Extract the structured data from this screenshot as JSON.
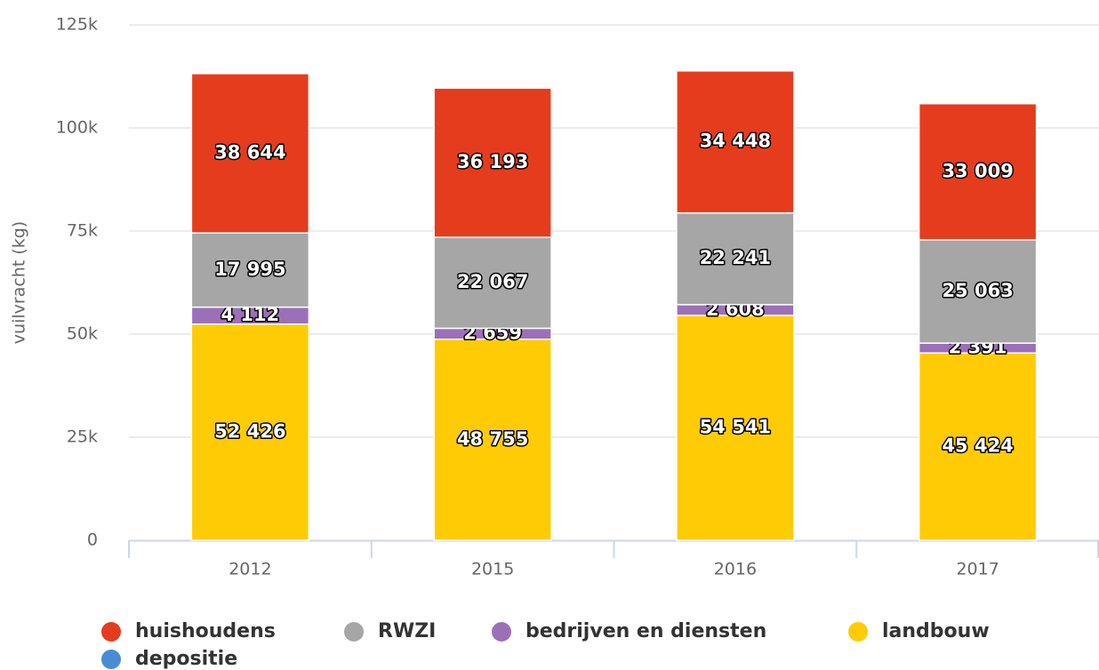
{
  "chart_data": {
    "type": "stacked_bar",
    "y_label": "vuilvracht (kg)",
    "categories": [
      "2012",
      "2015",
      "2016",
      "2017"
    ],
    "series": [
      {
        "name": "huishoudens",
        "color": "#e63c1e",
        "values": [
          38644,
          36193,
          34448,
          33009
        ],
        "value_labels": [
          "38 644",
          "36 193",
          "34 448",
          "33 009"
        ]
      },
      {
        "name": "RWZI",
        "color": "#a6a6a6",
        "values": [
          17995,
          22067,
          22241,
          25063
        ],
        "value_labels": [
          "17 995",
          "22 067",
          "22 241",
          "25 063"
        ]
      },
      {
        "name": "bedrijven en diensten",
        "color": "#9c70b8",
        "values": [
          4112,
          2659,
          2608,
          2391
        ],
        "value_labels": [
          "4 112",
          "2 659",
          "2 608",
          "2 391"
        ]
      },
      {
        "name": "landbouw",
        "color": "#ffcb05",
        "values": [
          52426,
          48755,
          54541,
          45424
        ],
        "value_labels": [
          "52 426",
          "48 755",
          "54 541",
          "45 424"
        ]
      },
      {
        "name": "depositie",
        "color": "#4a8bd6",
        "values": [
          null,
          null,
          null,
          null
        ]
      }
    ],
    "ylim": [
      0,
      125000
    ],
    "yticks": [
      0,
      {
        "value": 25000,
        "label": "25k"
      },
      {
        "value": 50000,
        "label": "50k"
      },
      {
        "value": 75000,
        "label": "75k"
      },
      {
        "value": 100000,
        "label": "100k"
      },
      {
        "value": 125000,
        "label": "125k"
      }
    ],
    "grid": true
  }
}
